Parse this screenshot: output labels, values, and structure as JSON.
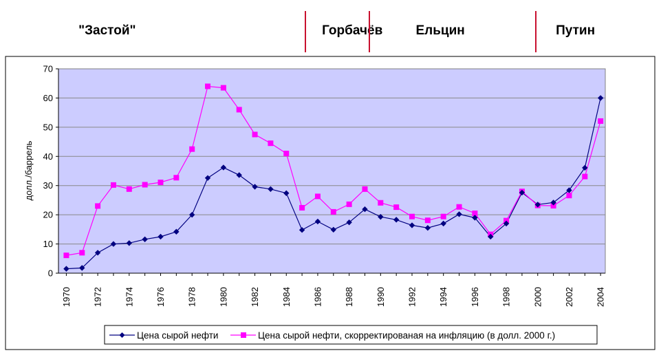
{
  "eras": [
    {
      "name": "\"Застой\"",
      "center_year": 1972.6
    },
    {
      "name": "Горбачёв",
      "center_year": 1988.2
    },
    {
      "name": "Ельцин",
      "center_year": 1993.8
    },
    {
      "name": "Путин",
      "center_year": 2002.4
    }
  ],
  "era_dividers": [
    1985.2,
    1989.3,
    1999.9
  ],
  "colors": {
    "plot_background": "#ccccff",
    "grid": "#888888",
    "series_1": "#000080",
    "series_2": "#ff00ff",
    "era_divider": "#c8102e"
  },
  "chart_data": {
    "type": "line",
    "title": "",
    "xlabel": "",
    "ylabel": "долл./баррель",
    "xlim": [
      1969.5,
      2004.3
    ],
    "ylim": [
      0,
      70
    ],
    "yticks": [
      0,
      10,
      20,
      30,
      40,
      50,
      60,
      70
    ],
    "xticks": [
      1970,
      1972,
      1974,
      1976,
      1978,
      1980,
      1982,
      1984,
      1986,
      1988,
      1990,
      1992,
      1994,
      1996,
      1998,
      2000,
      2002,
      2004
    ],
    "grid": "horizontal",
    "legend_position": "bottom-right",
    "x": [
      1970,
      1971,
      1972,
      1973,
      1974,
      1975,
      1976,
      1977,
      1978,
      1979,
      1980,
      1981,
      1982,
      1983,
      1984,
      1985,
      1986,
      1987,
      1988,
      1989,
      1990,
      1991,
      1992,
      1993,
      1994,
      1995,
      1996,
      1997,
      1998,
      1999,
      2000,
      2001,
      2002,
      2003,
      2004
    ],
    "series": [
      {
        "name": "Цена сырой нефти",
        "marker": "diamond",
        "values": [
          1.5,
          1.8,
          7.0,
          10.0,
          10.3,
          11.6,
          12.5,
          14.2,
          20.0,
          32.6,
          36.2,
          33.6,
          29.6,
          28.8,
          27.4,
          14.8,
          17.7,
          14.9,
          17.4,
          21.9,
          19.3,
          18.3,
          16.4,
          15.5,
          17.0,
          20.2,
          19.0,
          12.5,
          17.0,
          27.6,
          23.5,
          24.2,
          28.4,
          36.1,
          60.0
        ]
      },
      {
        "name": "Цена сырой нефти, скорректированая на инфляцию (в долл. 2000 г.)",
        "marker": "square",
        "values": [
          6.1,
          7.0,
          23.0,
          30.2,
          28.8,
          30.3,
          31.1,
          32.7,
          42.5,
          64.0,
          63.5,
          56.0,
          47.5,
          44.5,
          41.0,
          22.4,
          26.3,
          21.0,
          23.6,
          28.8,
          24.1,
          22.6,
          19.4,
          18.1,
          19.4,
          22.7,
          20.5,
          13.3,
          18.0,
          28.0,
          23.2,
          23.1,
          26.6,
          33.1,
          52.1
        ]
      }
    ]
  }
}
